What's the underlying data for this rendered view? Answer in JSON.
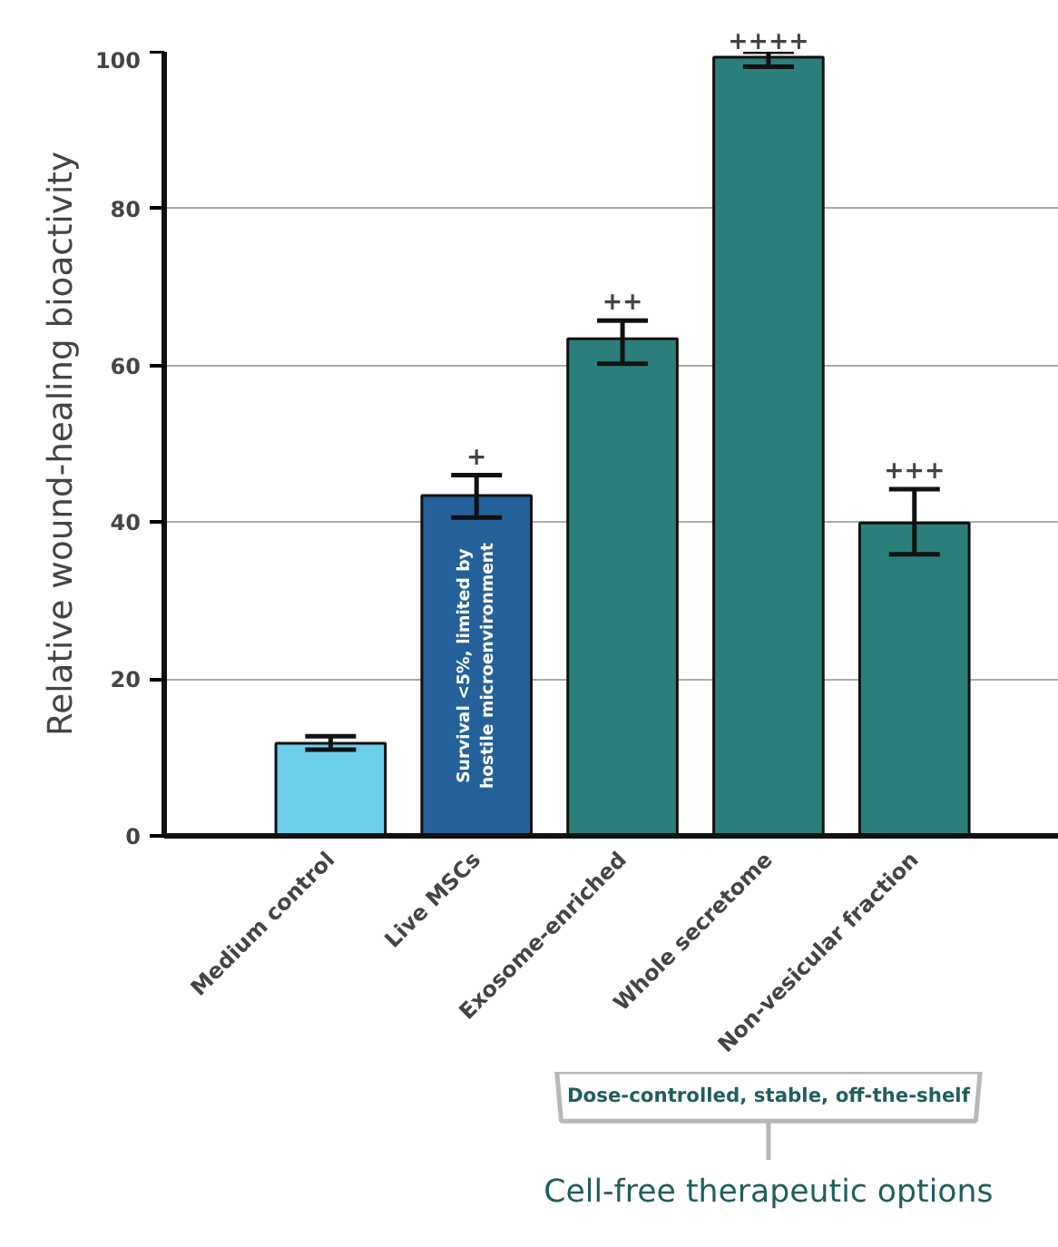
{
  "chart_data": {
    "type": "bar",
    "ylabel": "Relative wound-healing bioactivity",
    "categories": [
      "Medium control",
      "Live MSCs",
      "Exosome-enriched",
      "Whole secretome",
      "Non-vesicular fraction"
    ],
    "values": [
      11.8,
      43.4,
      63.4,
      99.3,
      39.9
    ],
    "colors": [
      "#6ecfea",
      "#24619a",
      "#2a7f7b",
      "#2a7f7b",
      "#2a7f7b"
    ],
    "errors": [
      [
        11.0,
        12.7
      ],
      [
        40.6,
        46.0
      ],
      [
        60.2,
        65.7
      ],
      [
        98.1,
        100.0
      ],
      [
        35.9,
        44.2
      ]
    ],
    "ylim": [
      0,
      100
    ],
    "yticks": [
      0,
      20,
      40,
      60,
      80,
      100
    ],
    "grid": "y",
    "annotations": [
      {
        "text": "+",
        "x": "Live MSCs",
        "y": 46.0
      },
      {
        "text": "++",
        "x": "Exosome-enriched",
        "y": 65.7
      },
      {
        "text": "++++",
        "x": "Whole secretome",
        "y": 100.0
      },
      {
        "text": "+++",
        "x": "Non-vesicular fraction",
        "y": 44.2
      },
      "Survival <5%, limited by hostile microenvironment",
      "Dose-controlled, stable, off-the-shelf",
      "Cell-free therapeutic options"
    ]
  }
}
